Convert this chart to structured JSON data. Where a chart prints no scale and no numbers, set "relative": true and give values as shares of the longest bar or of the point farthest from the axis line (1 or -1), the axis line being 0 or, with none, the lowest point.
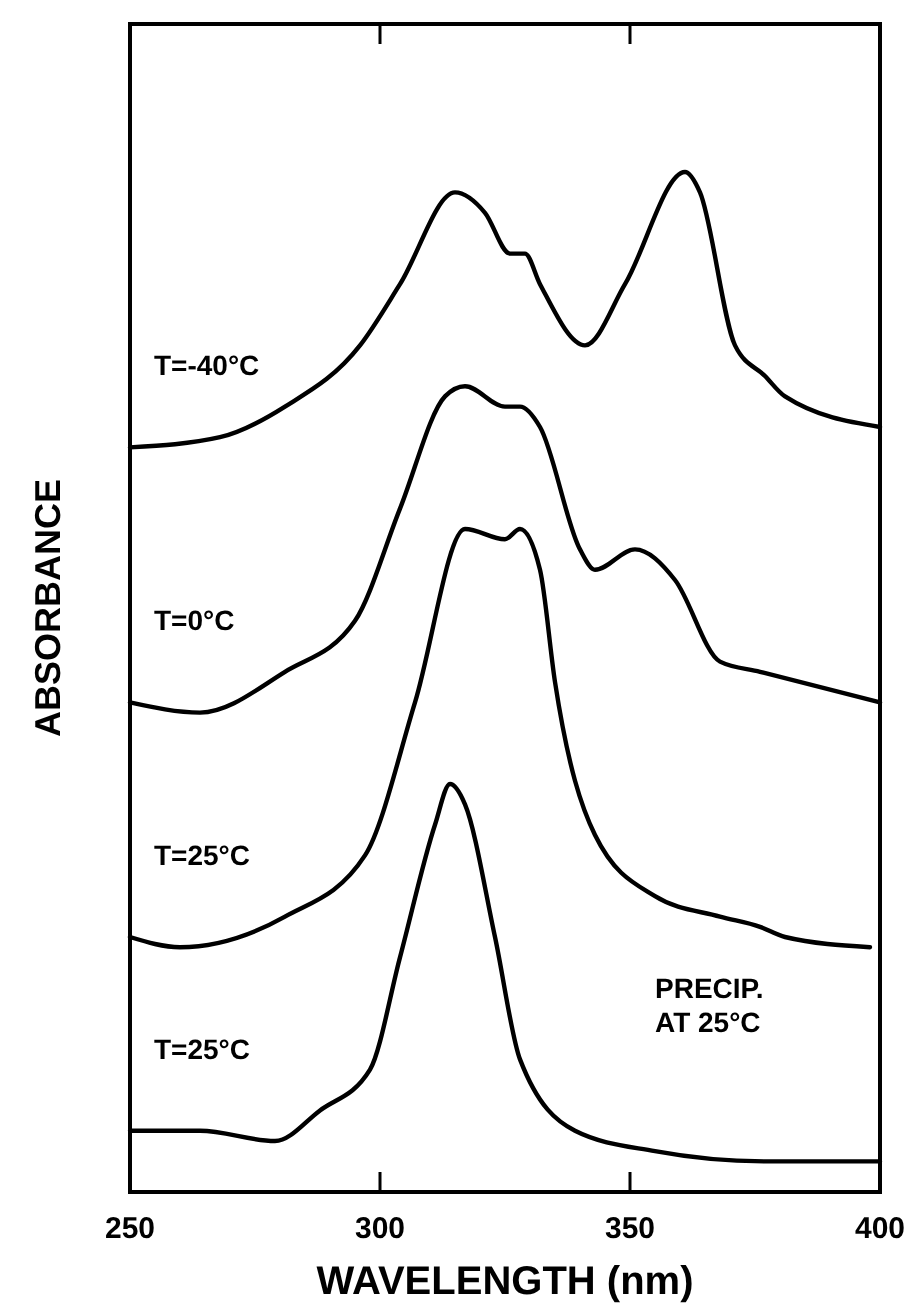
{
  "chart_data": {
    "type": "line",
    "relative": true,
    "xlabel": "WAVELENGTH (nm)",
    "ylabel": "ABSORBANCE",
    "xlim": [
      250,
      400
    ],
    "xticks": [
      250,
      300,
      350,
      400
    ],
    "grid": false,
    "marker": "none",
    "line_style": "solid",
    "annotations": [
      "PRECIP.\nAT 25°C"
    ],
    "series": [
      {
        "name": "T=-40°C",
        "color": "#000000",
        "x": [
          250,
          268,
          281,
          296,
          304,
          315,
          321,
          326,
          329,
          332,
          341,
          349,
          361,
          364,
          371,
          377,
          381,
          400
        ],
        "values": [
          0.73,
          0.74,
          0.77,
          0.83,
          0.89,
          0.98,
          0.96,
          0.92,
          0.92,
          0.89,
          0.83,
          0.89,
          1.0,
          0.98,
          0.83,
          0.8,
          0.78,
          0.75
        ]
      },
      {
        "name": "T=0°C",
        "color": "#000000",
        "x": [
          250,
          264,
          281,
          295,
          304,
          313,
          317,
          325,
          328,
          332,
          340,
          343,
          351,
          359,
          368,
          376,
          400
        ],
        "values": [
          0.48,
          0.47,
          0.51,
          0.56,
          0.67,
          0.78,
          0.79,
          0.77,
          0.77,
          0.75,
          0.63,
          0.61,
          0.63,
          0.6,
          0.52,
          0.51,
          0.48
        ]
      },
      {
        "name": "T=25°C",
        "color": "#000000",
        "x": [
          250,
          260,
          281,
          297,
          307,
          317,
          325,
          328,
          332,
          335,
          343,
          355,
          368,
          376,
          381,
          398
        ],
        "values": [
          0.25,
          0.24,
          0.27,
          0.33,
          0.48,
          0.65,
          0.64,
          0.65,
          0.61,
          0.5,
          0.35,
          0.29,
          0.27,
          0.26,
          0.25,
          0.24
        ]
      },
      {
        "name": "T=25°C",
        "color": "#000000",
        "x": [
          250,
          264,
          279,
          288,
          298,
          304,
          311,
          314,
          317,
          323,
          328,
          339,
          355,
          377,
          400
        ],
        "values": [
          0.06,
          0.06,
          0.05,
          0.08,
          0.12,
          0.23,
          0.36,
          0.4,
          0.38,
          0.25,
          0.13,
          0.06,
          0.04,
          0.03,
          0.03
        ]
      }
    ]
  }
}
